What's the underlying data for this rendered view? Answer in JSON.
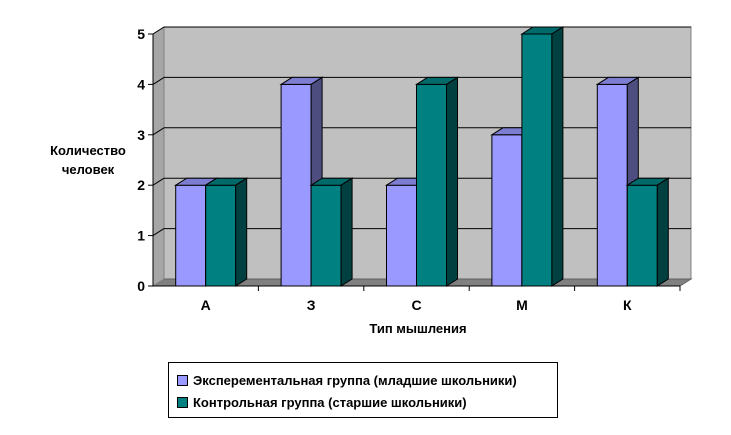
{
  "chart_data": {
    "type": "bar",
    "title": "",
    "xlabel": "Тип мышления",
    "ylabel_lines": [
      "Количество",
      "человек"
    ],
    "categories": [
      "А",
      "З",
      "С",
      "М",
      "К"
    ],
    "ylim": [
      0,
      5
    ],
    "yticks": [
      "0",
      "1",
      "2",
      "3",
      "4",
      "5"
    ],
    "grid": true,
    "legend_position": "bottom",
    "series": [
      {
        "name": "Эксперементальная группа (младшие школьники)",
        "values": [
          2,
          4,
          2,
          3,
          4
        ],
        "color": "#9999ff"
      },
      {
        "name": "Контрольная группа (старшие школьники)",
        "values": [
          2,
          2,
          4,
          5,
          2
        ],
        "color": "#008080"
      }
    ]
  }
}
